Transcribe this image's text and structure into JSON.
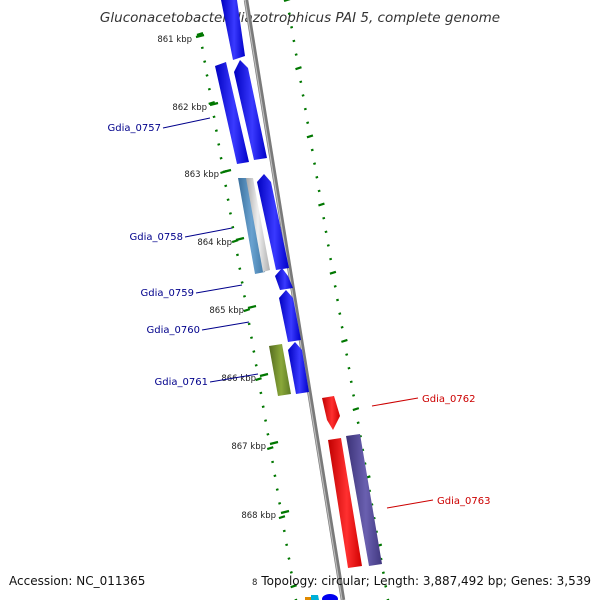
{
  "title": "Gluconacetobacter diazotrophicus PAI 5, complete genome",
  "accession_text": "Accession: NC_011365",
  "info_text": "Topology: circular; Length: 3,887,492 bp; Genes: 3,539",
  "bottom_partial_tick": "8",
  "ticks": [
    "861 kbp",
    "862 kbp",
    "863 kbp",
    "864 kbp",
    "865 kbp",
    "866 kbp",
    "867 kbp",
    "868 kbp"
  ],
  "genes_left": [
    "Gdia_0757",
    "Gdia_0758",
    "Gdia_0759",
    "Gdia_0760",
    "Gdia_0761"
  ],
  "genes_right": [
    "Gdia_0762",
    "Gdia_0763"
  ],
  "colors": {
    "label_left": "#00008b",
    "label_right": "#cc0000",
    "forward_cds": "#0000ee",
    "reverse_cds": "#ee0000",
    "tick_mark": "#007700",
    "backbone": "#888888",
    "gene_green": "#6b8e23",
    "gene_steel": "#4682b4",
    "gene_slate": "#483d8b"
  }
}
